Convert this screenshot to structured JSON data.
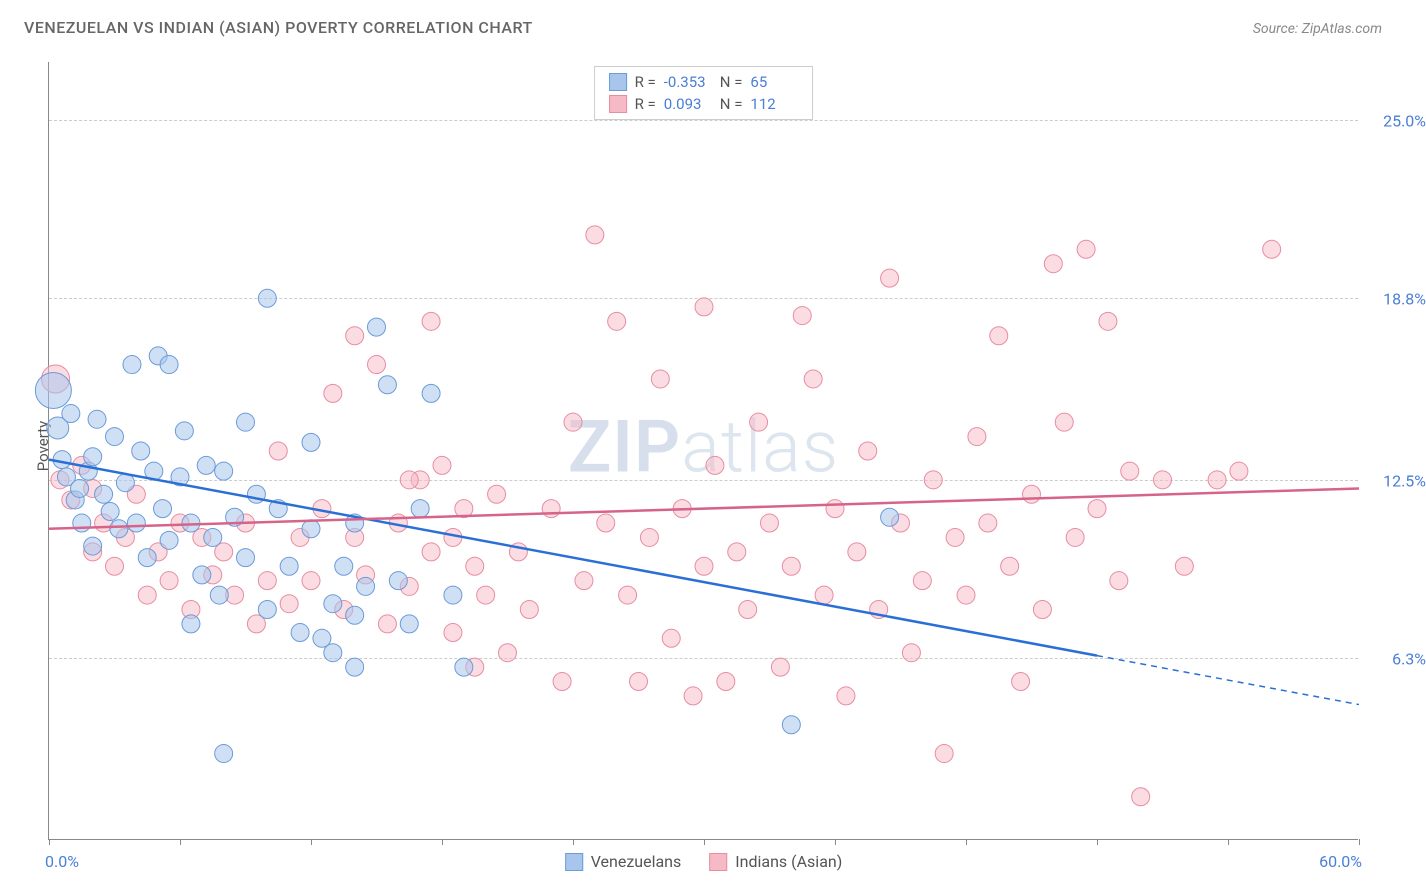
{
  "title": "VENEZUELAN VS INDIAN (ASIAN) POVERTY CORRELATION CHART",
  "source_label": "Source: ZipAtlas.com",
  "ylabel": "Poverty",
  "watermark_bold": "ZIP",
  "watermark_light": "atlas",
  "chart": {
    "type": "scatter",
    "xlim": [
      0,
      60
    ],
    "ylim": [
      0,
      27
    ],
    "x_start_label": "0.0%",
    "x_end_label": "60.0%",
    "xtick_positions": [
      0,
      6,
      12,
      18,
      24,
      30,
      36,
      42,
      48,
      54,
      60
    ],
    "y_gridlines": [
      {
        "value": 6.3,
        "label": "6.3%"
      },
      {
        "value": 12.5,
        "label": "12.5%"
      },
      {
        "value": 18.8,
        "label": "18.8%"
      },
      {
        "value": 25.0,
        "label": "25.0%"
      }
    ],
    "background_color": "#ffffff",
    "grid_color": "#cccccc",
    "series": [
      {
        "name": "Venezuelans",
        "fill_color": "#a8c6ec",
        "stroke_color": "#6b9bd8",
        "fill_opacity": 0.55,
        "R": "-0.353",
        "N": "65",
        "trend": {
          "x1": 0,
          "y1": 13.2,
          "x2": 48,
          "y2": 6.4,
          "ext_x2": 60,
          "ext_y2": 4.7,
          "color": "#2a6fd6",
          "width": 2.5
        },
        "points": [
          {
            "x": 0.2,
            "y": 15.6,
            "r": 18
          },
          {
            "x": 0.4,
            "y": 14.3,
            "r": 11
          },
          {
            "x": 0.6,
            "y": 13.2,
            "r": 9
          },
          {
            "x": 0.8,
            "y": 12.6,
            "r": 9
          },
          {
            "x": 1.0,
            "y": 14.8,
            "r": 9
          },
          {
            "x": 1.2,
            "y": 11.8,
            "r": 9
          },
          {
            "x": 1.4,
            "y": 12.2,
            "r": 9
          },
          {
            "x": 1.8,
            "y": 12.8,
            "r": 9
          },
          {
            "x": 2.0,
            "y": 13.3,
            "r": 9
          },
          {
            "x": 2.2,
            "y": 14.6,
            "r": 9
          },
          {
            "x": 2.5,
            "y": 12.0,
            "r": 9
          },
          {
            "x": 2.8,
            "y": 11.4,
            "r": 9
          },
          {
            "x": 3.0,
            "y": 14.0,
            "r": 9
          },
          {
            "x": 3.2,
            "y": 10.8,
            "r": 9
          },
          {
            "x": 3.5,
            "y": 12.4,
            "r": 9
          },
          {
            "x": 3.8,
            "y": 16.5,
            "r": 9
          },
          {
            "x": 4.0,
            "y": 11.0,
            "r": 9
          },
          {
            "x": 4.2,
            "y": 13.5,
            "r": 9
          },
          {
            "x": 4.5,
            "y": 9.8,
            "r": 9
          },
          {
            "x": 4.8,
            "y": 12.8,
            "r": 9
          },
          {
            "x": 5.0,
            "y": 16.8,
            "r": 9
          },
          {
            "x": 5.2,
            "y": 11.5,
            "r": 9
          },
          {
            "x": 5.5,
            "y": 10.4,
            "r": 9
          },
          {
            "x": 5.5,
            "y": 16.5,
            "r": 9
          },
          {
            "x": 6.0,
            "y": 12.6,
            "r": 9
          },
          {
            "x": 6.2,
            "y": 14.2,
            "r": 9
          },
          {
            "x": 6.5,
            "y": 11.0,
            "r": 9
          },
          {
            "x": 7.0,
            "y": 9.2,
            "r": 9
          },
          {
            "x": 7.2,
            "y": 13.0,
            "r": 9
          },
          {
            "x": 7.5,
            "y": 10.5,
            "r": 9
          },
          {
            "x": 7.8,
            "y": 8.5,
            "r": 9
          },
          {
            "x": 8.0,
            "y": 12.8,
            "r": 9
          },
          {
            "x": 8.0,
            "y": 3.0,
            "r": 9
          },
          {
            "x": 8.5,
            "y": 11.2,
            "r": 9
          },
          {
            "x": 9.0,
            "y": 9.8,
            "r": 9
          },
          {
            "x": 9.0,
            "y": 14.5,
            "r": 9
          },
          {
            "x": 9.5,
            "y": 12.0,
            "r": 9
          },
          {
            "x": 10.0,
            "y": 8.0,
            "r": 9
          },
          {
            "x": 10.0,
            "y": 18.8,
            "r": 9
          },
          {
            "x": 10.5,
            "y": 11.5,
            "r": 9
          },
          {
            "x": 11.0,
            "y": 9.5,
            "r": 9
          },
          {
            "x": 11.5,
            "y": 7.2,
            "r": 9
          },
          {
            "x": 12.0,
            "y": 10.8,
            "r": 9
          },
          {
            "x": 12.0,
            "y": 13.8,
            "r": 9
          },
          {
            "x": 12.5,
            "y": 7.0,
            "r": 9
          },
          {
            "x": 13.0,
            "y": 8.2,
            "r": 9
          },
          {
            "x": 13.0,
            "y": 6.5,
            "r": 9
          },
          {
            "x": 13.5,
            "y": 9.5,
            "r": 9
          },
          {
            "x": 14.0,
            "y": 11.0,
            "r": 9
          },
          {
            "x": 14.0,
            "y": 7.8,
            "r": 9
          },
          {
            "x": 14.0,
            "y": 6.0,
            "r": 9
          },
          {
            "x": 14.5,
            "y": 8.8,
            "r": 9
          },
          {
            "x": 15.0,
            "y": 17.8,
            "r": 9
          },
          {
            "x": 15.5,
            "y": 15.8,
            "r": 9
          },
          {
            "x": 16.0,
            "y": 9.0,
            "r": 9
          },
          {
            "x": 16.5,
            "y": 7.5,
            "r": 9
          },
          {
            "x": 17.0,
            "y": 11.5,
            "r": 9
          },
          {
            "x": 17.5,
            "y": 15.5,
            "r": 9
          },
          {
            "x": 18.5,
            "y": 8.5,
            "r": 9
          },
          {
            "x": 19.0,
            "y": 6.0,
            "r": 9
          },
          {
            "x": 34.0,
            "y": 4.0,
            "r": 9
          },
          {
            "x": 38.5,
            "y": 11.2,
            "r": 9
          },
          {
            "x": 1.5,
            "y": 11.0,
            "r": 9
          },
          {
            "x": 2.0,
            "y": 10.2,
            "r": 9
          },
          {
            "x": 6.5,
            "y": 7.5,
            "r": 9
          }
        ]
      },
      {
        "name": "Indians (Asian)",
        "fill_color": "#f5bac6",
        "stroke_color": "#e88da0",
        "fill_opacity": 0.5,
        "R": "0.093",
        "N": "112",
        "trend": {
          "x1": 0,
          "y1": 10.8,
          "x2": 60,
          "y2": 12.2,
          "color": "#d6638a",
          "width": 2.5
        },
        "points": [
          {
            "x": 0.3,
            "y": 16.0,
            "r": 14
          },
          {
            "x": 0.5,
            "y": 12.5,
            "r": 9
          },
          {
            "x": 1.0,
            "y": 11.8,
            "r": 9
          },
          {
            "x": 1.5,
            "y": 13.0,
            "r": 9
          },
          {
            "x": 2.0,
            "y": 12.2,
            "r": 9
          },
          {
            "x": 2.0,
            "y": 10.0,
            "r": 9
          },
          {
            "x": 2.5,
            "y": 11.0,
            "r": 9
          },
          {
            "x": 3.0,
            "y": 9.5,
            "r": 9
          },
          {
            "x": 3.5,
            "y": 10.5,
            "r": 9
          },
          {
            "x": 4.0,
            "y": 12.0,
            "r": 9
          },
          {
            "x": 4.5,
            "y": 8.5,
            "r": 9
          },
          {
            "x": 5.0,
            "y": 10.0,
            "r": 9
          },
          {
            "x": 5.5,
            "y": 9.0,
            "r": 9
          },
          {
            "x": 6.0,
            "y": 11.0,
            "r": 9
          },
          {
            "x": 6.5,
            "y": 8.0,
            "r": 9
          },
          {
            "x": 7.0,
            "y": 10.5,
            "r": 9
          },
          {
            "x": 7.5,
            "y": 9.2,
            "r": 9
          },
          {
            "x": 8.0,
            "y": 10.0,
            "r": 9
          },
          {
            "x": 8.5,
            "y": 8.5,
            "r": 9
          },
          {
            "x": 9.0,
            "y": 11.0,
            "r": 9
          },
          {
            "x": 9.5,
            "y": 7.5,
            "r": 9
          },
          {
            "x": 10.0,
            "y": 9.0,
            "r": 9
          },
          {
            "x": 10.5,
            "y": 13.5,
            "r": 9
          },
          {
            "x": 11.0,
            "y": 8.2,
            "r": 9
          },
          {
            "x": 11.5,
            "y": 10.5,
            "r": 9
          },
          {
            "x": 12.0,
            "y": 9.0,
            "r": 9
          },
          {
            "x": 12.5,
            "y": 11.5,
            "r": 9
          },
          {
            "x": 13.0,
            "y": 15.5,
            "r": 9
          },
          {
            "x": 13.5,
            "y": 8.0,
            "r": 9
          },
          {
            "x": 14.0,
            "y": 10.5,
            "r": 9
          },
          {
            "x": 14.5,
            "y": 9.2,
            "r": 9
          },
          {
            "x": 15.0,
            "y": 16.5,
            "r": 9
          },
          {
            "x": 15.5,
            "y": 7.5,
            "r": 9
          },
          {
            "x": 16.0,
            "y": 11.0,
            "r": 9
          },
          {
            "x": 16.5,
            "y": 8.8,
            "r": 9
          },
          {
            "x": 17.0,
            "y": 12.5,
            "r": 9
          },
          {
            "x": 17.5,
            "y": 10.0,
            "r": 9
          },
          {
            "x": 18.0,
            "y": 13.0,
            "r": 9
          },
          {
            "x": 18.5,
            "y": 7.2,
            "r": 9
          },
          {
            "x": 19.0,
            "y": 11.5,
            "r": 9
          },
          {
            "x": 19.5,
            "y": 9.5,
            "r": 9
          },
          {
            "x": 20.0,
            "y": 8.5,
            "r": 9
          },
          {
            "x": 20.5,
            "y": 12.0,
            "r": 9
          },
          {
            "x": 21.0,
            "y": 6.5,
            "r": 9
          },
          {
            "x": 21.5,
            "y": 10.0,
            "r": 9
          },
          {
            "x": 22.0,
            "y": 8.0,
            "r": 9
          },
          {
            "x": 23.0,
            "y": 11.5,
            "r": 9
          },
          {
            "x": 23.5,
            "y": 5.5,
            "r": 9
          },
          {
            "x": 24.0,
            "y": 14.5,
            "r": 9
          },
          {
            "x": 24.5,
            "y": 9.0,
            "r": 9
          },
          {
            "x": 25.0,
            "y": 21.0,
            "r": 9
          },
          {
            "x": 25.5,
            "y": 11.0,
            "r": 9
          },
          {
            "x": 26.0,
            "y": 18.0,
            "r": 9
          },
          {
            "x": 26.5,
            "y": 8.5,
            "r": 9
          },
          {
            "x": 27.0,
            "y": 5.5,
            "r": 9
          },
          {
            "x": 27.5,
            "y": 10.5,
            "r": 9
          },
          {
            "x": 28.0,
            "y": 16.0,
            "r": 9
          },
          {
            "x": 28.5,
            "y": 7.0,
            "r": 9
          },
          {
            "x": 29.0,
            "y": 11.5,
            "r": 9
          },
          {
            "x": 29.5,
            "y": 5.0,
            "r": 9
          },
          {
            "x": 30.0,
            "y": 9.5,
            "r": 9
          },
          {
            "x": 30.0,
            "y": 18.5,
            "r": 9
          },
          {
            "x": 30.5,
            "y": 13.0,
            "r": 9
          },
          {
            "x": 31.0,
            "y": 5.5,
            "r": 9
          },
          {
            "x": 31.5,
            "y": 10.0,
            "r": 9
          },
          {
            "x": 32.0,
            "y": 8.0,
            "r": 9
          },
          {
            "x": 32.5,
            "y": 14.5,
            "r": 9
          },
          {
            "x": 33.0,
            "y": 11.0,
            "r": 9
          },
          {
            "x": 33.5,
            "y": 6.0,
            "r": 9
          },
          {
            "x": 34.0,
            "y": 9.5,
            "r": 9
          },
          {
            "x": 34.5,
            "y": 18.2,
            "r": 9
          },
          {
            "x": 35.0,
            "y": 16.0,
            "r": 9
          },
          {
            "x": 35.5,
            "y": 8.5,
            "r": 9
          },
          {
            "x": 36.0,
            "y": 11.5,
            "r": 9
          },
          {
            "x": 36.5,
            "y": 5.0,
            "r": 9
          },
          {
            "x": 37.0,
            "y": 10.0,
            "r": 9
          },
          {
            "x": 37.5,
            "y": 13.5,
            "r": 9
          },
          {
            "x": 38.0,
            "y": 8.0,
            "r": 9
          },
          {
            "x": 38.5,
            "y": 19.5,
            "r": 9
          },
          {
            "x": 39.0,
            "y": 11.0,
            "r": 9
          },
          {
            "x": 39.5,
            "y": 6.5,
            "r": 9
          },
          {
            "x": 40.0,
            "y": 9.0,
            "r": 9
          },
          {
            "x": 40.5,
            "y": 12.5,
            "r": 9
          },
          {
            "x": 41.0,
            "y": 3.0,
            "r": 9
          },
          {
            "x": 41.5,
            "y": 10.5,
            "r": 9
          },
          {
            "x": 42.0,
            "y": 8.5,
            "r": 9
          },
          {
            "x": 42.5,
            "y": 14.0,
            "r": 9
          },
          {
            "x": 43.0,
            "y": 11.0,
            "r": 9
          },
          {
            "x": 43.5,
            "y": 17.5,
            "r": 9
          },
          {
            "x": 44.0,
            "y": 9.5,
            "r": 9
          },
          {
            "x": 44.5,
            "y": 5.5,
            "r": 9
          },
          {
            "x": 45.0,
            "y": 12.0,
            "r": 9
          },
          {
            "x": 45.5,
            "y": 8.0,
            "r": 9
          },
          {
            "x": 46.0,
            "y": 20.0,
            "r": 9
          },
          {
            "x": 46.5,
            "y": 14.5,
            "r": 9
          },
          {
            "x": 47.0,
            "y": 10.5,
            "r": 9
          },
          {
            "x": 47.5,
            "y": 20.5,
            "r": 9
          },
          {
            "x": 48.0,
            "y": 11.5,
            "r": 9
          },
          {
            "x": 48.5,
            "y": 18.0,
            "r": 9
          },
          {
            "x": 49.0,
            "y": 9.0,
            "r": 9
          },
          {
            "x": 49.5,
            "y": 12.8,
            "r": 9
          },
          {
            "x": 50.0,
            "y": 1.5,
            "r": 9
          },
          {
            "x": 51.0,
            "y": 12.5,
            "r": 9
          },
          {
            "x": 52.0,
            "y": 9.5,
            "r": 9
          },
          {
            "x": 53.5,
            "y": 12.5,
            "r": 9
          },
          {
            "x": 54.5,
            "y": 12.8,
            "r": 9
          },
          {
            "x": 56.0,
            "y": 20.5,
            "r": 9
          },
          {
            "x": 14.0,
            "y": 17.5,
            "r": 9
          },
          {
            "x": 16.5,
            "y": 12.5,
            "r": 9
          },
          {
            "x": 17.5,
            "y": 18.0,
            "r": 9
          },
          {
            "x": 18.5,
            "y": 10.5,
            "r": 9
          },
          {
            "x": 19.5,
            "y": 6.0,
            "r": 9
          }
        ]
      }
    ]
  }
}
